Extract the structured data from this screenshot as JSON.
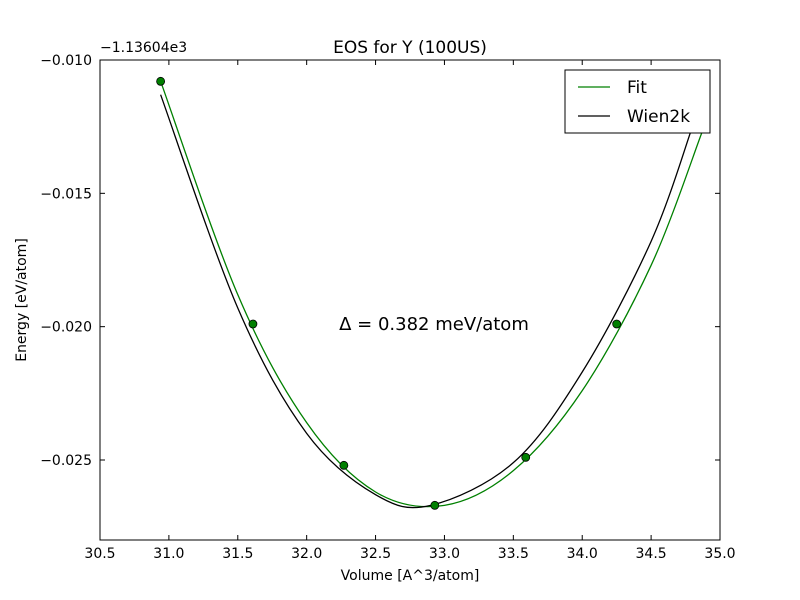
{
  "chart_data": {
    "type": "line",
    "title": "EOS for Y (100US)",
    "xlabel": "Volume [A^3/atom]",
    "ylabel": "Energy [eV/atom]",
    "y_offset_label": "−1.13604e3",
    "annotation": "Δ = 0.382 meV/atom",
    "xlim": [
      30.5,
      35.0
    ],
    "ylim": [
      -0.028,
      -0.01
    ],
    "x_ticks": [
      30.5,
      31.0,
      31.5,
      32.0,
      32.5,
      33.0,
      33.5,
      34.0,
      34.5,
      35.0
    ],
    "x_tick_labels": [
      "30.5",
      "31.0",
      "31.5",
      "32.0",
      "32.5",
      "33.0",
      "33.5",
      "34.0",
      "34.5",
      "35.0"
    ],
    "y_ticks": [
      -0.01,
      -0.015,
      -0.02,
      -0.025
    ],
    "y_tick_labels": [
      "−0.010",
      "−0.015",
      "−0.020",
      "−0.025"
    ],
    "grid": false,
    "legend_position": "top-right",
    "points": {
      "color": "#007f00",
      "x": [
        30.94,
        31.61,
        32.27,
        32.93,
        33.59,
        34.25
      ],
      "y": [
        -0.0108,
        -0.0199,
        -0.0252,
        -0.0267,
        -0.0249,
        -0.0199
      ]
    },
    "series": [
      {
        "name": "Fit",
        "color": "#008000",
        "x": [
          30.94,
          31.5,
          32.0,
          32.5,
          33.0,
          33.5,
          34.0,
          34.5,
          34.87
        ],
        "y": [
          -0.0108,
          -0.0188,
          -0.0236,
          -0.0262,
          -0.0267,
          -0.0254,
          -0.0224,
          -0.0177,
          -0.0127
        ]
      },
      {
        "name": "Wien2k",
        "color": "#000000",
        "x": [
          30.94,
          31.5,
          32.0,
          32.5,
          32.9,
          33.5,
          34.0,
          34.5,
          34.8
        ],
        "y": [
          -0.0113,
          -0.0193,
          -0.024,
          -0.0263,
          -0.0267,
          -0.0251,
          -0.0217,
          -0.0168,
          -0.0125
        ]
      }
    ]
  }
}
